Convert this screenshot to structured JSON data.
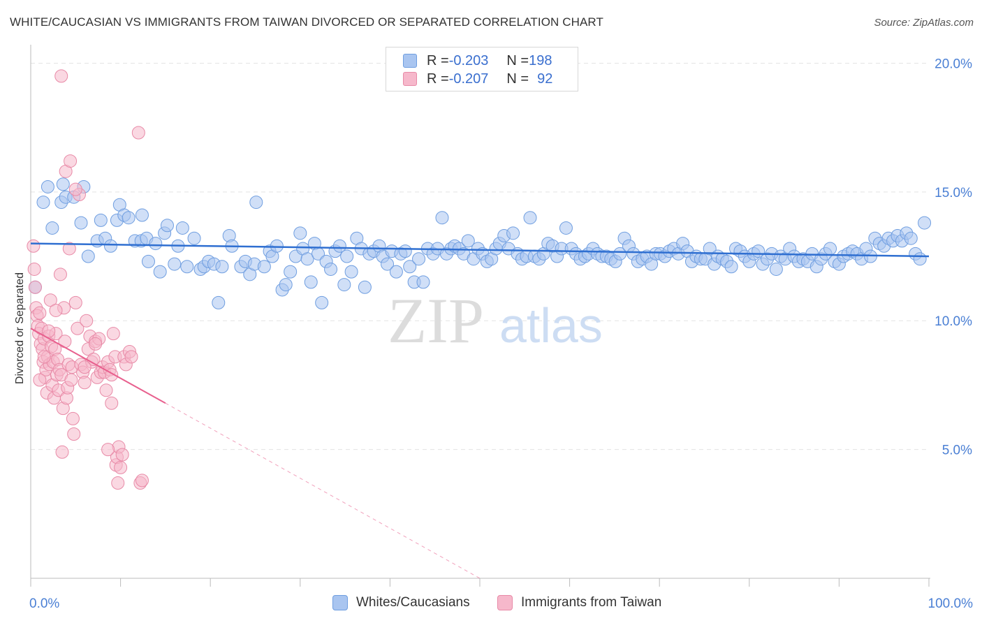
{
  "title": "WHITE/CAUCASIAN VS IMMIGRANTS FROM TAIWAN DIVORCED OR SEPARATED CORRELATION CHART",
  "source": "Source: ZipAtlas.com",
  "watermark": {
    "zip": "ZIP",
    "atlas": "atlas"
  },
  "legend_stats": [
    {
      "r_label": "R = ",
      "r_value": "-0.203",
      "n_label": "N = ",
      "n_value": "198",
      "color": "#a9c5f0"
    },
    {
      "r_label": "R = ",
      "r_value": "-0.207",
      "n_label": "N = ",
      "n_value": "92",
      "color": "#f6b8cb"
    }
  ],
  "colors": {
    "blue_fill": "#a9c5f0",
    "blue_stroke": "#6f9ee0",
    "blue_line": "#2f6fd1",
    "pink_fill": "#f6b8cb",
    "pink_stroke": "#e88aa7",
    "pink_line": "#e8608e",
    "grid": "#e3e3e3",
    "axis_label": "#4a7fd4"
  },
  "chart_data": {
    "type": "scatter",
    "title": "WHITE/CAUCASIAN VS IMMIGRANTS FROM TAIWAN DIVORCED OR SEPARATED CORRELATION CHART",
    "xlabel": "",
    "ylabel": "Divorced or Separated",
    "xlim": [
      0,
      100
    ],
    "ylim": [
      0,
      20.5
    ],
    "x_tick_labels": [
      "0.0%",
      "100.0%"
    ],
    "y_ticks": [
      5,
      10,
      15,
      20
    ],
    "y_tick_labels": [
      "5.0%",
      "10.0%",
      "15.0%",
      "20.0%"
    ],
    "grid": true,
    "legend_position": "bottom-center",
    "series": [
      {
        "name": "Whites/Caucasians",
        "r": -0.203,
        "n": 198,
        "trend": {
          "x": [
            0,
            100
          ],
          "y": [
            13.0,
            12.5
          ]
        },
        "points": [
          [
            0.5,
            11.3
          ],
          [
            1.4,
            14.6
          ],
          [
            1.9,
            15.2
          ],
          [
            2.4,
            13.6
          ],
          [
            3.6,
            15.3
          ],
          [
            3.4,
            14.6
          ],
          [
            3.9,
            14.8
          ],
          [
            4.8,
            14.8
          ],
          [
            5.6,
            13.8
          ],
          [
            5.9,
            15.2
          ],
          [
            6.4,
            12.5
          ],
          [
            7.4,
            13.1
          ],
          [
            7.8,
            13.9
          ],
          [
            8.3,
            13.2
          ],
          [
            8.9,
            12.9
          ],
          [
            9.6,
            13.9
          ],
          [
            9.9,
            14.5
          ],
          [
            10.4,
            14.1
          ],
          [
            10.9,
            14.0
          ],
          [
            11.6,
            13.1
          ],
          [
            12.3,
            13.1
          ],
          [
            12.4,
            14.1
          ],
          [
            12.9,
            13.2
          ],
          [
            13.1,
            12.3
          ],
          [
            13.9,
            13.0
          ],
          [
            14.4,
            11.9
          ],
          [
            14.9,
            13.4
          ],
          [
            15.2,
            13.7
          ],
          [
            16.0,
            12.2
          ],
          [
            16.4,
            12.9
          ],
          [
            16.9,
            13.6
          ],
          [
            17.4,
            12.1
          ],
          [
            18.2,
            13.2
          ],
          [
            18.9,
            12.0
          ],
          [
            19.3,
            12.1
          ],
          [
            19.8,
            12.3
          ],
          [
            20.4,
            12.2
          ],
          [
            20.9,
            10.7
          ],
          [
            21.3,
            12.1
          ],
          [
            22.1,
            13.3
          ],
          [
            22.4,
            12.9
          ],
          [
            23.4,
            12.1
          ],
          [
            23.9,
            12.3
          ],
          [
            24.4,
            11.8
          ],
          [
            24.9,
            12.2
          ],
          [
            25.1,
            14.6
          ],
          [
            26.0,
            12.1
          ],
          [
            26.6,
            12.7
          ],
          [
            26.9,
            12.5
          ],
          [
            27.4,
            12.9
          ],
          [
            28.0,
            11.2
          ],
          [
            28.4,
            11.4
          ],
          [
            28.9,
            11.9
          ],
          [
            29.5,
            12.5
          ],
          [
            30.0,
            13.4
          ],
          [
            30.3,
            12.8
          ],
          [
            30.8,
            12.4
          ],
          [
            31.2,
            11.5
          ],
          [
            31.6,
            13.0
          ],
          [
            32.0,
            12.6
          ],
          [
            32.4,
            10.7
          ],
          [
            32.9,
            12.3
          ],
          [
            33.4,
            12.0
          ],
          [
            33.9,
            12.7
          ],
          [
            34.4,
            12.9
          ],
          [
            34.9,
            11.4
          ],
          [
            35.2,
            12.5
          ],
          [
            35.7,
            11.9
          ],
          [
            36.3,
            13.2
          ],
          [
            36.8,
            12.8
          ],
          [
            37.2,
            11.3
          ],
          [
            37.7,
            12.6
          ],
          [
            38.2,
            12.7
          ],
          [
            38.8,
            12.9
          ],
          [
            39.2,
            12.5
          ],
          [
            39.7,
            12.2
          ],
          [
            40.2,
            12.7
          ],
          [
            40.7,
            11.9
          ],
          [
            41.2,
            12.6
          ],
          [
            41.7,
            12.7
          ],
          [
            42.2,
            12.1
          ],
          [
            42.7,
            11.5
          ],
          [
            43.2,
            12.4
          ],
          [
            43.7,
            11.5
          ],
          [
            44.2,
            12.8
          ],
          [
            44.8,
            12.6
          ],
          [
            45.3,
            12.8
          ],
          [
            45.8,
            14.0
          ],
          [
            46.3,
            12.6
          ],
          [
            46.8,
            12.8
          ],
          [
            47.2,
            12.9
          ],
          [
            47.7,
            12.8
          ],
          [
            48.2,
            12.6
          ],
          [
            48.7,
            13.1
          ],
          [
            49.3,
            12.4
          ],
          [
            49.8,
            12.8
          ],
          [
            50.3,
            12.6
          ],
          [
            50.8,
            12.3
          ],
          [
            51.3,
            12.4
          ],
          [
            51.8,
            12.8
          ],
          [
            52.2,
            13.0
          ],
          [
            52.7,
            13.3
          ],
          [
            53.2,
            12.8
          ],
          [
            53.7,
            13.4
          ],
          [
            54.2,
            12.6
          ],
          [
            54.7,
            12.4
          ],
          [
            55.2,
            12.5
          ],
          [
            55.6,
            14.0
          ],
          [
            56.1,
            12.5
          ],
          [
            56.6,
            12.4
          ],
          [
            57.1,
            12.6
          ],
          [
            57.6,
            13.0
          ],
          [
            58.1,
            12.9
          ],
          [
            58.6,
            12.5
          ],
          [
            59.1,
            12.8
          ],
          [
            59.6,
            13.6
          ],
          [
            60.2,
            12.8
          ],
          [
            60.7,
            12.6
          ],
          [
            61.2,
            12.4
          ],
          [
            61.7,
            12.5
          ],
          [
            62.1,
            12.6
          ],
          [
            62.6,
            12.8
          ],
          [
            63.1,
            12.6
          ],
          [
            63.6,
            12.5
          ],
          [
            64.1,
            12.5
          ],
          [
            64.6,
            12.4
          ],
          [
            65.1,
            12.3
          ],
          [
            65.6,
            12.6
          ],
          [
            66.1,
            13.2
          ],
          [
            66.6,
            12.9
          ],
          [
            67.1,
            12.6
          ],
          [
            67.6,
            12.3
          ],
          [
            68.1,
            12.4
          ],
          [
            68.6,
            12.5
          ],
          [
            69.1,
            12.2
          ],
          [
            69.6,
            12.6
          ],
          [
            70.1,
            12.6
          ],
          [
            70.6,
            12.5
          ],
          [
            71.1,
            12.7
          ],
          [
            71.6,
            12.8
          ],
          [
            72.1,
            12.6
          ],
          [
            72.6,
            13.0
          ],
          [
            73.1,
            12.7
          ],
          [
            73.6,
            12.3
          ],
          [
            74.1,
            12.5
          ],
          [
            74.6,
            12.4
          ],
          [
            75.1,
            12.4
          ],
          [
            75.6,
            12.8
          ],
          [
            76.1,
            12.2
          ],
          [
            76.5,
            12.5
          ],
          [
            77.0,
            12.4
          ],
          [
            77.5,
            12.3
          ],
          [
            78.0,
            12.1
          ],
          [
            78.5,
            12.8
          ],
          [
            79.0,
            12.7
          ],
          [
            79.5,
            12.5
          ],
          [
            80.0,
            12.3
          ],
          [
            80.5,
            12.6
          ],
          [
            81.0,
            12.7
          ],
          [
            81.5,
            12.2
          ],
          [
            82.0,
            12.4
          ],
          [
            82.5,
            12.6
          ],
          [
            83.0,
            12.0
          ],
          [
            83.5,
            12.5
          ],
          [
            84.0,
            12.4
          ],
          [
            84.5,
            12.8
          ],
          [
            85.0,
            12.5
          ],
          [
            85.5,
            12.3
          ],
          [
            86.0,
            12.4
          ],
          [
            86.5,
            12.3
          ],
          [
            87.0,
            12.6
          ],
          [
            87.5,
            12.1
          ],
          [
            88.0,
            12.4
          ],
          [
            88.5,
            12.6
          ],
          [
            89.0,
            12.8
          ],
          [
            89.5,
            12.3
          ],
          [
            90.0,
            12.2
          ],
          [
            90.5,
            12.5
          ],
          [
            91.0,
            12.6
          ],
          [
            91.5,
            12.7
          ],
          [
            92.0,
            12.6
          ],
          [
            92.5,
            12.4
          ],
          [
            93.0,
            12.8
          ],
          [
            93.5,
            12.5
          ],
          [
            94.0,
            13.2
          ],
          [
            94.5,
            13.0
          ],
          [
            95.0,
            12.9
          ],
          [
            95.5,
            13.2
          ],
          [
            96.0,
            13.1
          ],
          [
            96.5,
            13.3
          ],
          [
            97.0,
            13.1
          ],
          [
            97.5,
            13.4
          ],
          [
            98.0,
            13.2
          ],
          [
            98.5,
            12.6
          ],
          [
            99.0,
            12.4
          ],
          [
            99.5,
            13.8
          ]
        ]
      },
      {
        "name": "Immigrants from Taiwan",
        "r": -0.207,
        "n": 92,
        "trend": {
          "x": [
            0,
            15
          ],
          "y": [
            9.7,
            6.8
          ]
        },
        "trend_dashed": {
          "x": [
            15,
            50
          ],
          "y": [
            6.8,
            0
          ]
        },
        "points": [
          [
            0.3,
            12.9
          ],
          [
            0.4,
            12.0
          ],
          [
            0.5,
            11.3
          ],
          [
            0.6,
            10.5
          ],
          [
            0.7,
            10.2
          ],
          [
            0.8,
            9.8
          ],
          [
            0.9,
            9.5
          ],
          [
            1.0,
            10.3
          ],
          [
            1.1,
            9.1
          ],
          [
            1.2,
            9.7
          ],
          [
            1.3,
            8.9
          ],
          [
            1.4,
            8.4
          ],
          [
            1.5,
            9.3
          ],
          [
            1.6,
            7.8
          ],
          [
            1.7,
            8.1
          ],
          [
            1.8,
            7.2
          ],
          [
            1.9,
            8.6
          ],
          [
            2.0,
            9.4
          ],
          [
            2.1,
            8.3
          ],
          [
            2.2,
            10.8
          ],
          [
            2.3,
            9.0
          ],
          [
            2.4,
            7.5
          ],
          [
            2.5,
            8.4
          ],
          [
            2.6,
            7.0
          ],
          [
            2.7,
            8.9
          ],
          [
            2.8,
            9.5
          ],
          [
            2.9,
            7.9
          ],
          [
            3.0,
            8.5
          ],
          [
            3.1,
            7.3
          ],
          [
            3.2,
            8.1
          ],
          [
            3.3,
            11.8
          ],
          [
            3.4,
            7.9
          ],
          [
            3.5,
            4.9
          ],
          [
            3.6,
            6.6
          ],
          [
            3.7,
            10.5
          ],
          [
            3.8,
            9.2
          ],
          [
            3.9,
            15.8
          ],
          [
            4.0,
            7.0
          ],
          [
            4.1,
            7.4
          ],
          [
            4.2,
            8.3
          ],
          [
            4.3,
            12.8
          ],
          [
            4.5,
            7.7
          ],
          [
            4.6,
            8.2
          ],
          [
            4.7,
            6.2
          ],
          [
            5.0,
            10.7
          ],
          [
            5.2,
            9.7
          ],
          [
            5.4,
            14.9
          ],
          [
            5.6,
            8.3
          ],
          [
            5.8,
            8.0
          ],
          [
            6.0,
            7.6
          ],
          [
            6.2,
            10.0
          ],
          [
            6.4,
            8.9
          ],
          [
            6.6,
            9.4
          ],
          [
            6.8,
            8.4
          ],
          [
            7.0,
            8.5
          ],
          [
            7.2,
            9.2
          ],
          [
            7.4,
            7.8
          ],
          [
            7.6,
            9.3
          ],
          [
            7.8,
            8.0
          ],
          [
            8.0,
            8.2
          ],
          [
            8.2,
            8.0
          ],
          [
            8.4,
            7.3
          ],
          [
            8.6,
            8.4
          ],
          [
            8.8,
            8.1
          ],
          [
            9.0,
            7.9
          ],
          [
            9.2,
            9.5
          ],
          [
            9.4,
            8.6
          ],
          [
            9.5,
            4.4
          ],
          [
            9.6,
            4.7
          ],
          [
            9.7,
            3.7
          ],
          [
            9.8,
            5.1
          ],
          [
            10.0,
            4.3
          ],
          [
            10.2,
            4.8
          ],
          [
            10.4,
            8.6
          ],
          [
            10.6,
            8.3
          ],
          [
            11.0,
            8.8
          ],
          [
            11.2,
            8.6
          ],
          [
            12.0,
            17.3
          ],
          [
            12.2,
            3.7
          ],
          [
            12.4,
            3.8
          ],
          [
            3.4,
            19.5
          ],
          [
            4.4,
            16.2
          ],
          [
            4.8,
            5.6
          ],
          [
            2.0,
            9.6
          ],
          [
            1.5,
            8.6
          ],
          [
            1.0,
            7.7
          ],
          [
            5.0,
            15.1
          ],
          [
            6.0,
            8.2
          ],
          [
            7.2,
            9.1
          ],
          [
            8.6,
            5.0
          ],
          [
            9.0,
            6.8
          ],
          [
            2.8,
            10.4
          ]
        ]
      }
    ]
  }
}
